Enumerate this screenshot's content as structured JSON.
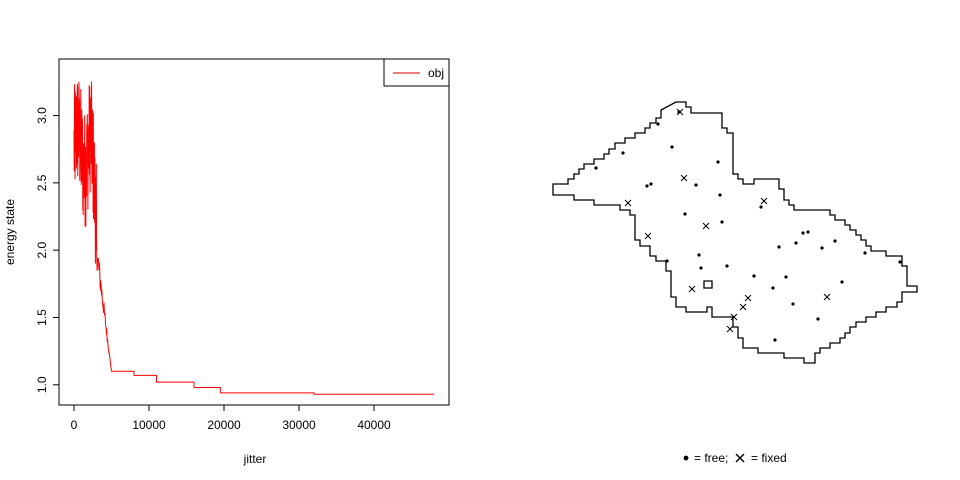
{
  "chart_data": [
    {
      "type": "line",
      "xlabel": "jitter",
      "ylabel": "energy state",
      "xlim": [
        -2000,
        50000
      ],
      "ylim": [
        0.85,
        3.42
      ],
      "xticks": [
        0,
        10000,
        20000,
        30000,
        40000
      ],
      "xtick_labels": [
        "0",
        "10000",
        "20000",
        "30000",
        "40000"
      ],
      "yticks": [
        1.0,
        1.5,
        2.0,
        2.5,
        3.0
      ],
      "ytick_labels": [
        "1.0",
        "1.5",
        "2.0",
        "2.5",
        "3.0"
      ],
      "legend": {
        "position": "top-right",
        "entries": [
          "obj"
        ]
      },
      "series": [
        {
          "name": "obj",
          "color": "#ff0000",
          "summary": {
            "start": 2.75,
            "peak": 3.35,
            "peak_x": 1200,
            "drop_start_x": 3000,
            "drop_end_x": 5000,
            "final": 0.93,
            "x_max": 48000
          },
          "step_points": [
            [
              5000,
              1.1
            ],
            [
              8000,
              1.07
            ],
            [
              11000,
              1.02
            ],
            [
              16000,
              0.98
            ],
            [
              19500,
              0.94
            ],
            [
              32000,
              0.93
            ],
            [
              48000,
              0.93
            ]
          ]
        }
      ]
    },
    {
      "type": "scatter",
      "legend": {
        "position": "bottom-center",
        "free_label": "= free;",
        "fixed_label": "= fixed"
      },
      "boundary": [
        [
          661,
          110
        ],
        [
          676,
          102
        ],
        [
          686,
          102
        ],
        [
          686,
          107
        ],
        [
          691,
          107
        ],
        [
          691,
          113
        ],
        [
          722,
          113
        ],
        [
          722,
          128
        ],
        [
          727,
          128
        ],
        [
          727,
          133
        ],
        [
          733,
          133
        ],
        [
          733,
          174
        ],
        [
          738,
          174
        ],
        [
          738,
          179
        ],
        [
          743,
          179
        ],
        [
          743,
          184
        ],
        [
          754,
          184
        ],
        [
          754,
          179
        ],
        [
          779,
          179
        ],
        [
          779,
          189
        ],
        [
          784,
          189
        ],
        [
          784,
          200
        ],
        [
          789,
          200
        ],
        [
          789,
          205
        ],
        [
          794,
          205
        ],
        [
          794,
          210
        ],
        [
          830,
          210
        ],
        [
          830,
          215
        ],
        [
          835,
          215
        ],
        [
          835,
          220
        ],
        [
          845,
          220
        ],
        [
          845,
          225
        ],
        [
          850,
          225
        ],
        [
          850,
          230
        ],
        [
          856,
          230
        ],
        [
          856,
          235
        ],
        [
          861,
          235
        ],
        [
          861,
          240
        ],
        [
          866,
          240
        ],
        [
          866,
          246
        ],
        [
          871,
          246
        ],
        [
          871,
          251
        ],
        [
          886,
          251
        ],
        [
          886,
          256
        ],
        [
          902,
          256
        ],
        [
          902,
          266
        ],
        [
          907,
          266
        ],
        [
          907,
          286
        ],
        [
          917,
          286
        ],
        [
          917,
          292
        ],
        [
          902,
          292
        ],
        [
          902,
          302
        ],
        [
          897,
          302
        ],
        [
          897,
          307
        ],
        [
          886,
          307
        ],
        [
          886,
          312
        ],
        [
          876,
          312
        ],
        [
          876,
          317
        ],
        [
          866,
          317
        ],
        [
          866,
          322
        ],
        [
          856,
          322
        ],
        [
          856,
          327
        ],
        [
          850,
          327
        ],
        [
          850,
          333
        ],
        [
          845,
          333
        ],
        [
          845,
          338
        ],
        [
          840,
          338
        ],
        [
          840,
          343
        ],
        [
          830,
          343
        ],
        [
          830,
          348
        ],
        [
          820,
          348
        ],
        [
          820,
          353
        ],
        [
          815,
          353
        ],
        [
          815,
          363
        ],
        [
          804,
          363
        ],
        [
          804,
          358
        ],
        [
          784,
          358
        ],
        [
          784,
          353
        ],
        [
          758,
          353
        ],
        [
          758,
          348
        ],
        [
          743,
          348
        ],
        [
          743,
          338
        ],
        [
          738,
          338
        ],
        [
          738,
          327
        ],
        [
          733,
          327
        ],
        [
          733,
          317
        ],
        [
          712,
          317
        ],
        [
          712,
          307
        ],
        [
          707,
          307
        ],
        [
          707,
          312
        ],
        [
          686,
          312
        ],
        [
          686,
          307
        ],
        [
          676,
          307
        ],
        [
          676,
          297
        ],
        [
          671,
          297
        ],
        [
          671,
          271
        ],
        [
          666,
          271
        ],
        [
          666,
          261
        ],
        [
          656,
          261
        ],
        [
          656,
          256
        ],
        [
          650,
          256
        ],
        [
          650,
          246
        ],
        [
          640,
          246
        ],
        [
          640,
          240
        ],
        [
          635,
          240
        ],
        [
          635,
          215
        ],
        [
          630,
          215
        ],
        [
          630,
          210
        ],
        [
          620,
          210
        ],
        [
          620,
          205
        ],
        [
          594,
          205
        ],
        [
          594,
          200
        ],
        [
          574,
          200
        ],
        [
          574,
          195
        ],
        [
          553,
          195
        ],
        [
          553,
          184
        ],
        [
          568,
          184
        ],
        [
          568,
          179
        ],
        [
          574,
          179
        ],
        [
          574,
          174
        ],
        [
          579,
          174
        ],
        [
          579,
          169
        ],
        [
          584,
          169
        ],
        [
          584,
          164
        ],
        [
          594,
          164
        ],
        [
          594,
          159
        ],
        [
          604,
          159
        ],
        [
          604,
          154
        ],
        [
          609,
          154
        ],
        [
          609,
          149
        ],
        [
          615,
          149
        ],
        [
          615,
          143
        ],
        [
          625,
          143
        ],
        [
          625,
          138
        ],
        [
          635,
          138
        ],
        [
          635,
          133
        ],
        [
          645,
          133
        ],
        [
          645,
          128
        ],
        [
          650,
          128
        ],
        [
          650,
          123
        ],
        [
          656,
          123
        ],
        [
          656,
          118
        ],
        [
          661,
          118
        ]
      ],
      "boundary_hole": [
        [
          704,
          281
        ],
        [
          712,
          281
        ],
        [
          712,
          288
        ],
        [
          704,
          288
        ]
      ],
      "free_points": [
        [
          679,
          112
        ],
        [
          658,
          124
        ],
        [
          623,
          153
        ],
        [
          596,
          168
        ],
        [
          672,
          147
        ],
        [
          718,
          162
        ],
        [
          647,
          186
        ],
        [
          651,
          184
        ],
        [
          696,
          185
        ],
        [
          720,
          195
        ],
        [
          761,
          207
        ],
        [
          685,
          214
        ],
        [
          722,
          222
        ],
        [
          779,
          247
        ],
        [
          796,
          243
        ],
        [
          803,
          233
        ],
        [
          808,
          232
        ],
        [
          835,
          241
        ],
        [
          822,
          248
        ],
        [
          667,
          261
        ],
        [
          699,
          255
        ],
        [
          701,
          268
        ],
        [
          727,
          266
        ],
        [
          754,
          276
        ],
        [
          786,
          277
        ],
        [
          773,
          288
        ],
        [
          842,
          282
        ],
        [
          793,
          304
        ],
        [
          818,
          319
        ],
        [
          775,
          340
        ],
        [
          865,
          253
        ],
        [
          900,
          262
        ]
      ],
      "fixed_points": [
        [
          680,
          112
        ],
        [
          628,
          203
        ],
        [
          648,
          236
        ],
        [
          684,
          178
        ],
        [
          706,
          226
        ],
        [
          764,
          201
        ],
        [
          692,
          289
        ],
        [
          748,
          298
        ],
        [
          743,
          307
        ],
        [
          734,
          317
        ],
        [
          730,
          329
        ],
        [
          827,
          297
        ]
      ]
    }
  ]
}
